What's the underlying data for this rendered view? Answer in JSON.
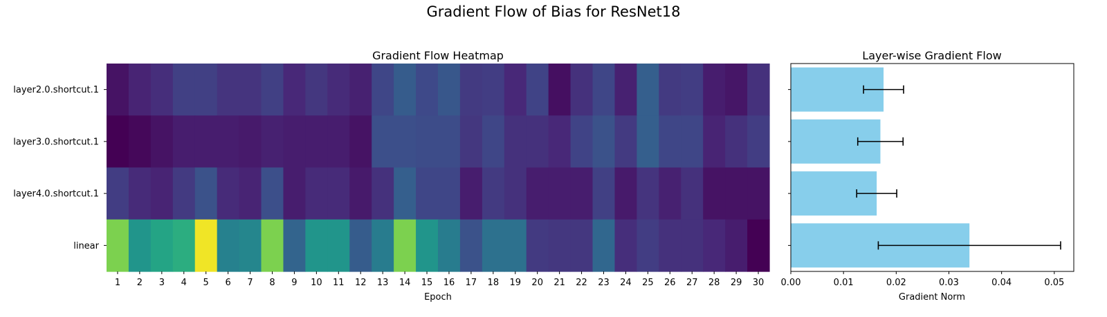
{
  "title": "Gradient Flow of Bias for ResNet18",
  "chart_data": [
    {
      "type": "heatmap",
      "title": "Gradient Flow Heatmap",
      "xlabel": "Epoch",
      "ylabel": "",
      "x": [
        1,
        2,
        3,
        4,
        5,
        6,
        7,
        8,
        9,
        10,
        11,
        12,
        13,
        14,
        15,
        16,
        17,
        18,
        19,
        20,
        21,
        22,
        23,
        24,
        25,
        26,
        27,
        28,
        29,
        30
      ],
      "y": [
        "layer2.0.shortcut.1",
        "layer3.0.shortcut.1",
        "layer4.0.shortcut.1",
        "linear"
      ],
      "colormap": "viridis",
      "normalized_values": [
        [
          0.05,
          0.1,
          0.13,
          0.19,
          0.19,
          0.15,
          0.15,
          0.19,
          0.11,
          0.16,
          0.12,
          0.09,
          0.21,
          0.29,
          0.22,
          0.27,
          0.17,
          0.18,
          0.11,
          0.2,
          0.04,
          0.14,
          0.21,
          0.09,
          0.3,
          0.17,
          0.18,
          0.08,
          0.06,
          0.14
        ],
        [
          0.0,
          0.02,
          0.05,
          0.08,
          0.08,
          0.08,
          0.07,
          0.09,
          0.08,
          0.08,
          0.08,
          0.05,
          0.24,
          0.24,
          0.23,
          0.23,
          0.16,
          0.21,
          0.14,
          0.14,
          0.11,
          0.2,
          0.25,
          0.17,
          0.3,
          0.21,
          0.21,
          0.1,
          0.14,
          0.18
        ],
        [
          0.18,
          0.12,
          0.1,
          0.17,
          0.25,
          0.12,
          0.1,
          0.24,
          0.08,
          0.12,
          0.12,
          0.07,
          0.14,
          0.3,
          0.21,
          0.21,
          0.08,
          0.17,
          0.14,
          0.08,
          0.08,
          0.08,
          0.19,
          0.07,
          0.15,
          0.09,
          0.14,
          0.05,
          0.05,
          0.05
        ],
        [
          0.8,
          0.52,
          0.58,
          0.62,
          0.98,
          0.44,
          0.46,
          0.8,
          0.32,
          0.52,
          0.52,
          0.29,
          0.42,
          0.8,
          0.52,
          0.42,
          0.25,
          0.37,
          0.37,
          0.17,
          0.16,
          0.16,
          0.33,
          0.13,
          0.18,
          0.14,
          0.14,
          0.11,
          0.08,
          0.0
        ]
      ]
    },
    {
      "type": "bar",
      "orientation": "horizontal",
      "title": "Layer-wise Gradient Flow",
      "xlabel": "Gradient Norm",
      "categories": [
        "layer2.0.shortcut.1",
        "layer3.0.shortcut.1",
        "layer4.0.shortcut.1",
        "linear"
      ],
      "values": [
        0.0176,
        0.017,
        0.0163,
        0.0339
      ],
      "errors": [
        0.0038,
        0.0043,
        0.0038,
        0.0173
      ],
      "xlim": [
        0,
        0.0537
      ],
      "xticks": [
        0.0,
        0.01,
        0.02,
        0.03,
        0.04,
        0.05
      ],
      "xtick_labels": [
        "0.00",
        "0.01",
        "0.02",
        "0.03",
        "0.04",
        "0.05"
      ],
      "bar_color": "#87ceeb"
    }
  ]
}
